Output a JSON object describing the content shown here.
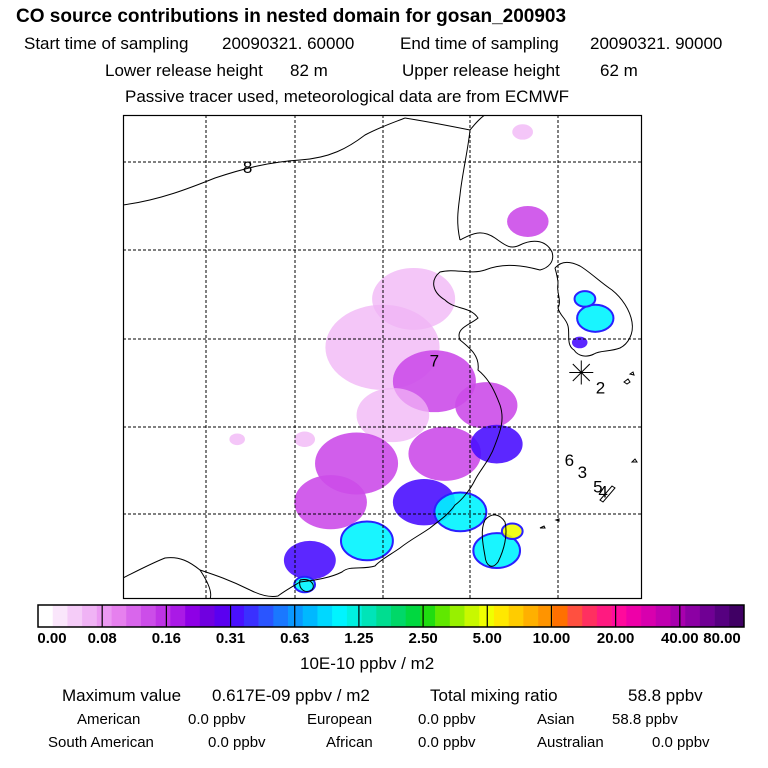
{
  "chart_data": {
    "type": "heatmap",
    "title": "CO  source contributions in nested domain for gosan_200903",
    "header": {
      "start_label": "Start time of sampling",
      "start_value": "20090321. 60000",
      "end_label": "End time of sampling",
      "end_value": "20090321. 90000",
      "lower_label": "Lower release height",
      "lower_value": "82 m",
      "upper_label": "Upper release height",
      "upper_value": "62 m",
      "note": "Passive tracer used, meteorological data are from ECMWF"
    },
    "region_labels": [
      {
        "id": "8",
        "x": 0.24,
        "y": 0.12
      },
      {
        "id": "7",
        "x": 0.6,
        "y": 0.52
      },
      {
        "id": "2",
        "x": 0.92,
        "y": 0.575
      },
      {
        "id": "6",
        "x": 0.86,
        "y": 0.725
      },
      {
        "id": "3",
        "x": 0.885,
        "y": 0.75
      },
      {
        "id": "5",
        "x": 0.915,
        "y": 0.78
      },
      {
        "id": "4",
        "x": 0.925,
        "y": 0.79
      }
    ],
    "receptor_marker": {
      "name": "gosan",
      "x": 0.883,
      "y": 0.532
    },
    "colorbar": {
      "ticks": [
        "0.00",
        "0.08",
        "0.16",
        "0.31",
        "0.63",
        "1.25",
        "2.50",
        "5.00",
        "10.00",
        "20.00",
        "40.00",
        "80.00"
      ],
      "colors": [
        "#ffffff",
        "#fae6fb",
        "#f5ccf8",
        "#f0b3f5",
        "#eb99f2",
        "#e680ee",
        "#d966ec",
        "#cc4de9",
        "#bf33e6",
        "#aa1ae6",
        "#8e00e6",
        "#7000e0",
        "#5a00f0",
        "#4a10ff",
        "#3a30ff",
        "#2a55ff",
        "#1a78ff",
        "#0a98ff",
        "#00b8ff",
        "#00d8ff",
        "#00f4ff",
        "#00f0e0",
        "#00e4b8",
        "#00dd90",
        "#00d868",
        "#00d840",
        "#20dd10",
        "#60e800",
        "#98f000",
        "#c8f800",
        "#f0ff00",
        "#ffe800",
        "#ffcc00",
        "#ffb000",
        "#ff9400",
        "#ff7000",
        "#ff5040",
        "#ff3060",
        "#ff1a80",
        "#ff0a9c",
        "#ee00a8",
        "#d800ae",
        "#c000b0",
        "#a800ae",
        "#8c00a4",
        "#700094",
        "#560080",
        "#400064"
      ],
      "unit": "10E-10 ppbv / m2"
    },
    "stats": {
      "max_label": "Maximum value",
      "max_value": "0.617E-09 ppbv / m2",
      "total_label": "Total mixing ratio",
      "total_value": "58.8 ppbv",
      "american_label": "American",
      "american_value": "0.0 ppbv",
      "european_label": "European",
      "european_value": "0.0 ppbv",
      "asian_label": "Asian",
      "asian_value": "58.8 ppbv",
      "south_american_label": "South American",
      "south_american_value": "0.0 ppbv",
      "african_label": "African",
      "african_value": "0.0 ppbv",
      "australian_label": "Australian",
      "australian_value": "0.0 ppbv"
    },
    "concentration_cells": [
      {
        "x": 0.78,
        "y": 0.22,
        "r": 0.04,
        "level": "low"
      },
      {
        "x": 0.56,
        "y": 0.38,
        "r": 0.08,
        "level": "very-low"
      },
      {
        "x": 0.5,
        "y": 0.48,
        "r": 0.11,
        "level": "very-low"
      },
      {
        "x": 0.6,
        "y": 0.55,
        "r": 0.08,
        "level": "low"
      },
      {
        "x": 0.7,
        "y": 0.6,
        "r": 0.06,
        "level": "low"
      },
      {
        "x": 0.52,
        "y": 0.62,
        "r": 0.07,
        "level": "very-low"
      },
      {
        "x": 0.45,
        "y": 0.72,
        "r": 0.08,
        "level": "low"
      },
      {
        "x": 0.62,
        "y": 0.7,
        "r": 0.07,
        "level": "low"
      },
      {
        "x": 0.72,
        "y": 0.68,
        "r": 0.05,
        "level": "medium"
      },
      {
        "x": 0.4,
        "y": 0.8,
        "r": 0.07,
        "level": "low"
      },
      {
        "x": 0.58,
        "y": 0.8,
        "r": 0.06,
        "level": "medium"
      },
      {
        "x": 0.65,
        "y": 0.82,
        "r": 0.05,
        "level": "high"
      },
      {
        "x": 0.47,
        "y": 0.88,
        "r": 0.05,
        "level": "high"
      },
      {
        "x": 0.36,
        "y": 0.92,
        "r": 0.05,
        "level": "medium"
      },
      {
        "x": 0.35,
        "y": 0.97,
        "r": 0.02,
        "level": "high"
      },
      {
        "x": 0.72,
        "y": 0.9,
        "r": 0.045,
        "level": "high"
      },
      {
        "x": 0.75,
        "y": 0.86,
        "r": 0.02,
        "level": "peak"
      },
      {
        "x": 0.91,
        "y": 0.42,
        "r": 0.035,
        "level": "high"
      },
      {
        "x": 0.89,
        "y": 0.38,
        "r": 0.02,
        "level": "high"
      },
      {
        "x": 0.88,
        "y": 0.47,
        "r": 0.015,
        "level": "medium"
      },
      {
        "x": 0.35,
        "y": 0.67,
        "r": 0.02,
        "level": "very-low"
      },
      {
        "x": 0.22,
        "y": 0.67,
        "r": 0.015,
        "level": "very-low"
      },
      {
        "x": 0.77,
        "y": 0.035,
        "r": 0.02,
        "level": "very-low"
      }
    ],
    "level_colors": {
      "very-low": "#f0b3f5",
      "low": "#cc4de9",
      "medium": "#4a10ff",
      "high": "#00f4ff",
      "peak": "#f0ff00"
    }
  }
}
